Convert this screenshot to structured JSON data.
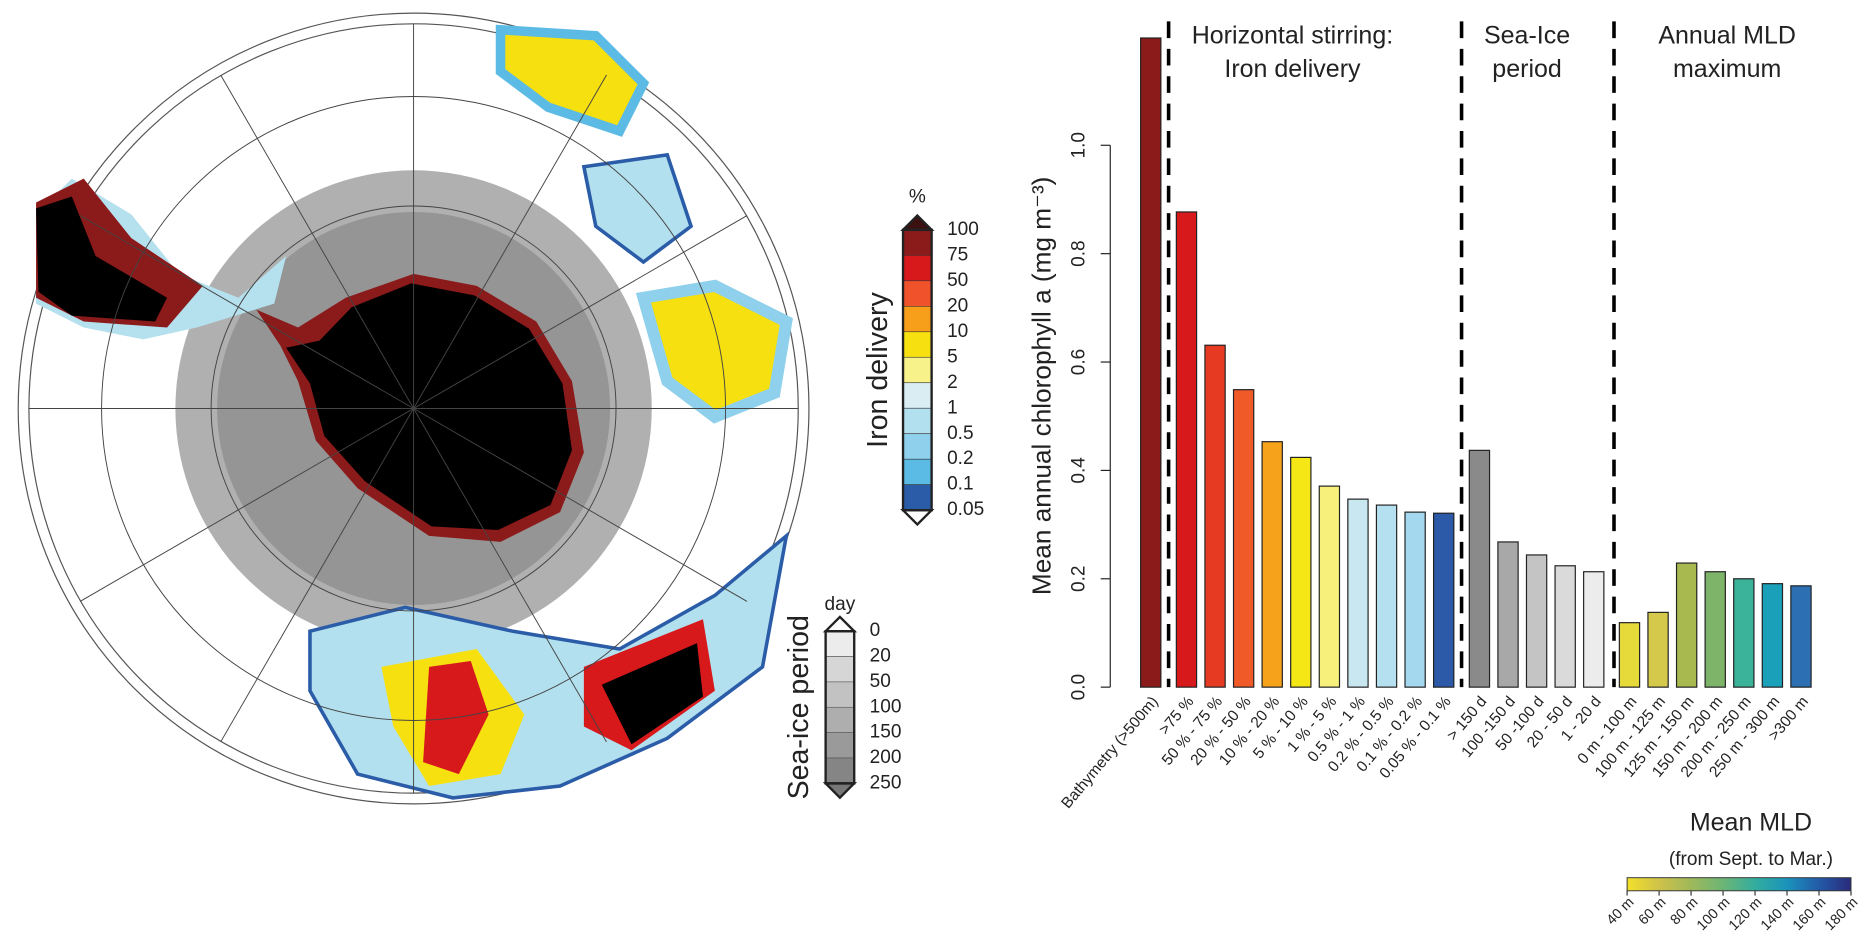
{
  "chart_data": {
    "type": "bar",
    "ylabel": "Mean annual chlorophyll a (mg m⁻³)",
    "sections": [
      {
        "lines": [
          "Horizontal stirring:",
          "Iron delivery"
        ]
      },
      {
        "lines": [
          "Sea-Ice",
          "period"
        ]
      },
      {
        "lines": [
          "Annual MLD",
          "maximum"
        ]
      }
    ],
    "categories": [
      "Bathymetry (>500m)",
      ">75 %",
      "50 % - 75 %",
      "20 % - 50 %",
      "10 % - 20 %",
      "5 % - 10 %",
      "1 % - 5 %",
      "0.5 % - 1 %",
      "0.2 % - 0.5 %",
      "0.1 % - 0.2 %",
      "0.05 % - 0.1 %",
      "> 150 d",
      "100 -150 d",
      "50 -100 d",
      "20 - 50 d",
      "1 - 20 d",
      "0 m - 100 m",
      "100 m - 125 m",
      "125 m - 150 m",
      "150 m - 200 m",
      "200 m - 250 m",
      "250 m - 300 m",
      ">300 m"
    ],
    "values": [
      1.198,
      0.877,
      0.631,
      0.549,
      0.453,
      0.424,
      0.371,
      0.347,
      0.336,
      0.323,
      0.321,
      0.437,
      0.268,
      0.244,
      0.224,
      0.213,
      0.119,
      0.138,
      0.229,
      0.213,
      0.2,
      0.191,
      0.187
    ],
    "colors": [
      "#8b1a1a",
      "#d7191c",
      "#e63b22",
      "#f05a28",
      "#f7a21b",
      "#f5e616",
      "#f7f07a",
      "#c9e7f0",
      "#b5e0ef",
      "#a3d8ee",
      "#2c5aa8",
      "#8a8a8a",
      "#a8a8a8",
      "#c4c4c4",
      "#dadada",
      "#ececec",
      "#e6d93a",
      "#d4c94a",
      "#a8b94f",
      "#7eb46a",
      "#3bb39a",
      "#1aa0b8",
      "#2c6fb2"
    ],
    "ylim": [
      0,
      1.2
    ],
    "yticks": [
      {
        "value": 0,
        "label": "0.0"
      },
      0.2,
      0.4,
      0.6,
      0.8,
      {
        "value": 1,
        "label": "1.0"
      }
    ],
    "mld_legend": {
      "title": "Mean MLD",
      "subtitle": "(from Sept. to Mar.)",
      "labels": [
        "40 m",
        "60 m",
        "80 m",
        "100 m",
        "120 m",
        "140 m",
        "160 m",
        "180 m"
      ],
      "colors": [
        "#f2e02a",
        "#cfc24a",
        "#9fb85a",
        "#6cb576",
        "#33ad9e",
        "#1a93bb",
        "#235aa8",
        "#2a2a7a"
      ]
    }
  },
  "map": {
    "iron_legend": {
      "title": "Iron delivery",
      "unit": "%",
      "labels": [
        "100",
        "75",
        "50",
        "20",
        "10",
        "5",
        "2",
        "1",
        "0.5",
        "0.2",
        "0.1",
        "0.05"
      ],
      "colors": [
        "#8b1a1a",
        "#d7191c",
        "#f0532b",
        "#f79e1b",
        "#f6e00f",
        "#f7f28a",
        "#d9edf2",
        "#b3e0ee",
        "#8fd0ec",
        "#5bbbe5",
        "#2b5ca8"
      ]
    },
    "ice_legend": {
      "title": "Sea-ice period",
      "unit": "day",
      "labels": [
        "0",
        "20",
        "50",
        "100",
        "150",
        "200",
        "250"
      ],
      "colors": [
        "#ececec",
        "#d6d6d6",
        "#c2c2c2",
        "#aeaeae",
        "#9a9a9a",
        "#858585"
      ]
    }
  }
}
